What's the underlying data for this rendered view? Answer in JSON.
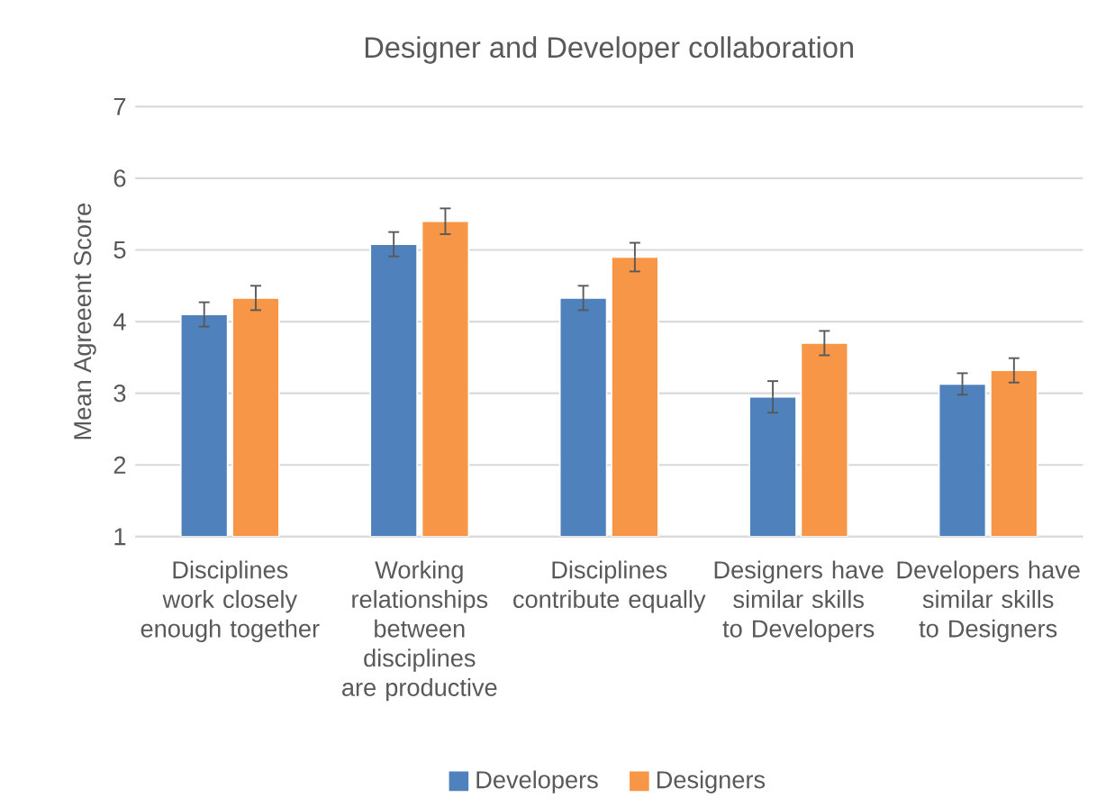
{
  "chart_data": {
    "type": "bar",
    "title": "Designer and Developer collaboration",
    "ylabel": "Mean Agreeent Score",
    "categories": [
      "Disciplines work closely enough together",
      "Working relationships between disciplines are productive",
      "Disciplines contribute equally",
      "Designers have similar skills to Developers",
      "Developers have similar skills to Designers"
    ],
    "series": [
      {
        "name": "Developers",
        "color": "#4f81bd",
        "values": [
          4.1,
          5.08,
          4.33,
          2.95,
          3.13
        ],
        "errors": [
          0.17,
          0.17,
          0.17,
          0.22,
          0.15
        ]
      },
      {
        "name": "Designers",
        "color": "#f79646",
        "values": [
          4.33,
          5.4,
          4.9,
          3.7,
          3.32
        ],
        "errors": [
          0.17,
          0.18,
          0.2,
          0.17,
          0.17
        ]
      }
    ],
    "ylim": [
      1,
      7
    ],
    "yticks": [
      1,
      2,
      3,
      4,
      5,
      6,
      7
    ],
    "grid": "y",
    "legend": "bottom"
  }
}
